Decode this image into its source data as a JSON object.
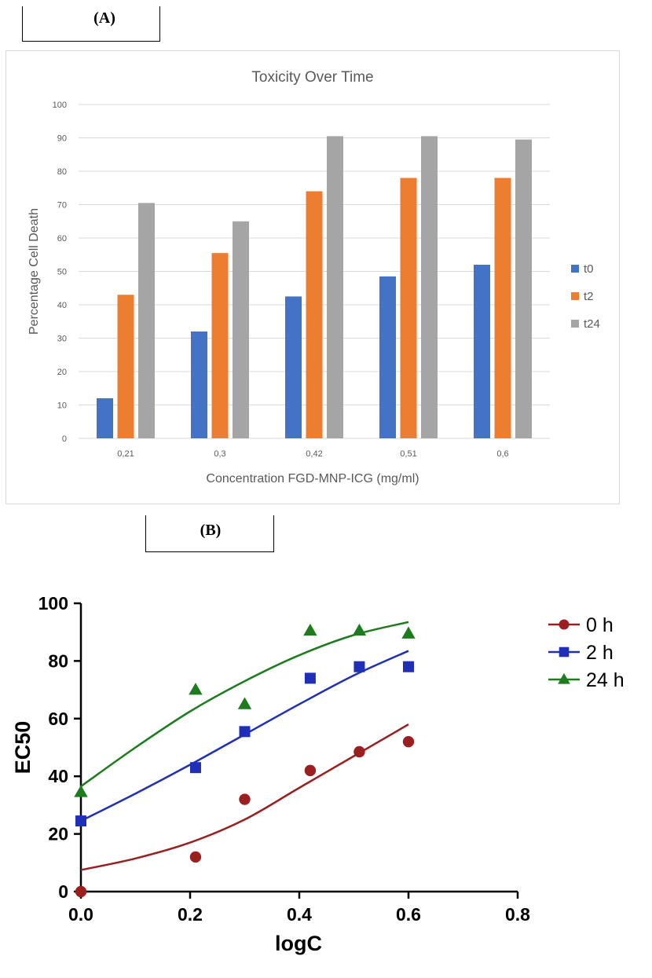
{
  "panel_labels": {
    "a": "(A)",
    "b": "(B)"
  },
  "chart_data": [
    {
      "type": "bar",
      "title": "Toxicity Over Time",
      "xlabel": "Concentration FGD-MNP-ICG (mg/ml)",
      "ylabel": "Percentage Cell Death",
      "categories": [
        "0,21",
        "0,3",
        "0,42",
        "0,51",
        "0,6"
      ],
      "ylim": [
        0,
        100
      ],
      "yticks": [
        "0",
        "10",
        "20",
        "30",
        "40",
        "50",
        "60",
        "70",
        "80",
        "90",
        "100"
      ],
      "grid": true,
      "legend_position": "right",
      "series": [
        {
          "name": "t0",
          "color": "#4472C4",
          "values": [
            12,
            32,
            42.5,
            48.5,
            52
          ]
        },
        {
          "name": "t2",
          "color": "#ED7D31",
          "values": [
            43,
            55.5,
            74,
            78,
            78
          ]
        },
        {
          "name": "t24",
          "color": "#A5A5A5",
          "values": [
            70.5,
            65,
            90.5,
            90.5,
            89.5
          ]
        }
      ]
    },
    {
      "type": "scatter",
      "xlabel": "logC",
      "ylabel": "EC50",
      "xlim": [
        0,
        0.8
      ],
      "ylim": [
        0,
        100
      ],
      "xticks": [
        "0.0",
        "0.2",
        "0.4",
        "0.6",
        "0.8"
      ],
      "yticks": [
        "0",
        "20",
        "40",
        "60",
        "80",
        "100"
      ],
      "grid": false,
      "legend_position": "right",
      "series": [
        {
          "name": "0 h",
          "marker": "circle",
          "color": "#9C1F1F",
          "points": [
            [
              0,
              0
            ],
            [
              0.21,
              12
            ],
            [
              0.3,
              32
            ],
            [
              0.42,
              42
            ],
            [
              0.51,
              48.5
            ],
            [
              0.6,
              52
            ]
          ],
          "fit": [
            [
              0,
              7.5
            ],
            [
              0.1,
              11.5
            ],
            [
              0.2,
              17
            ],
            [
              0.3,
              25
            ],
            [
              0.4,
              36
            ],
            [
              0.5,
              47
            ],
            [
              0.6,
              58
            ]
          ]
        },
        {
          "name": "2 h",
          "marker": "square",
          "color": "#1F2FB8",
          "points": [
            [
              0,
              24.5
            ],
            [
              0.21,
              43
            ],
            [
              0.3,
              55.5
            ],
            [
              0.42,
              74
            ],
            [
              0.51,
              78
            ],
            [
              0.6,
              78
            ]
          ],
          "fit": [
            [
              0,
              24.5
            ],
            [
              0.1,
              34
            ],
            [
              0.2,
              44
            ],
            [
              0.3,
              54.5
            ],
            [
              0.4,
              65
            ],
            [
              0.5,
              75
            ],
            [
              0.6,
              83.5
            ]
          ]
        },
        {
          "name": "24 h",
          "marker": "triangle",
          "color": "#1E7B1E",
          "points": [
            [
              0,
              34.5
            ],
            [
              0.21,
              70
            ],
            [
              0.3,
              65
            ],
            [
              0.42,
              90.5
            ],
            [
              0.51,
              90.5
            ],
            [
              0.6,
              89.5
            ]
          ],
          "fit": [
            [
              0,
              36.5
            ],
            [
              0.1,
              50
            ],
            [
              0.2,
              62.5
            ],
            [
              0.3,
              73
            ],
            [
              0.4,
              82
            ],
            [
              0.5,
              89
            ],
            [
              0.6,
              93.5
            ]
          ]
        }
      ]
    }
  ]
}
